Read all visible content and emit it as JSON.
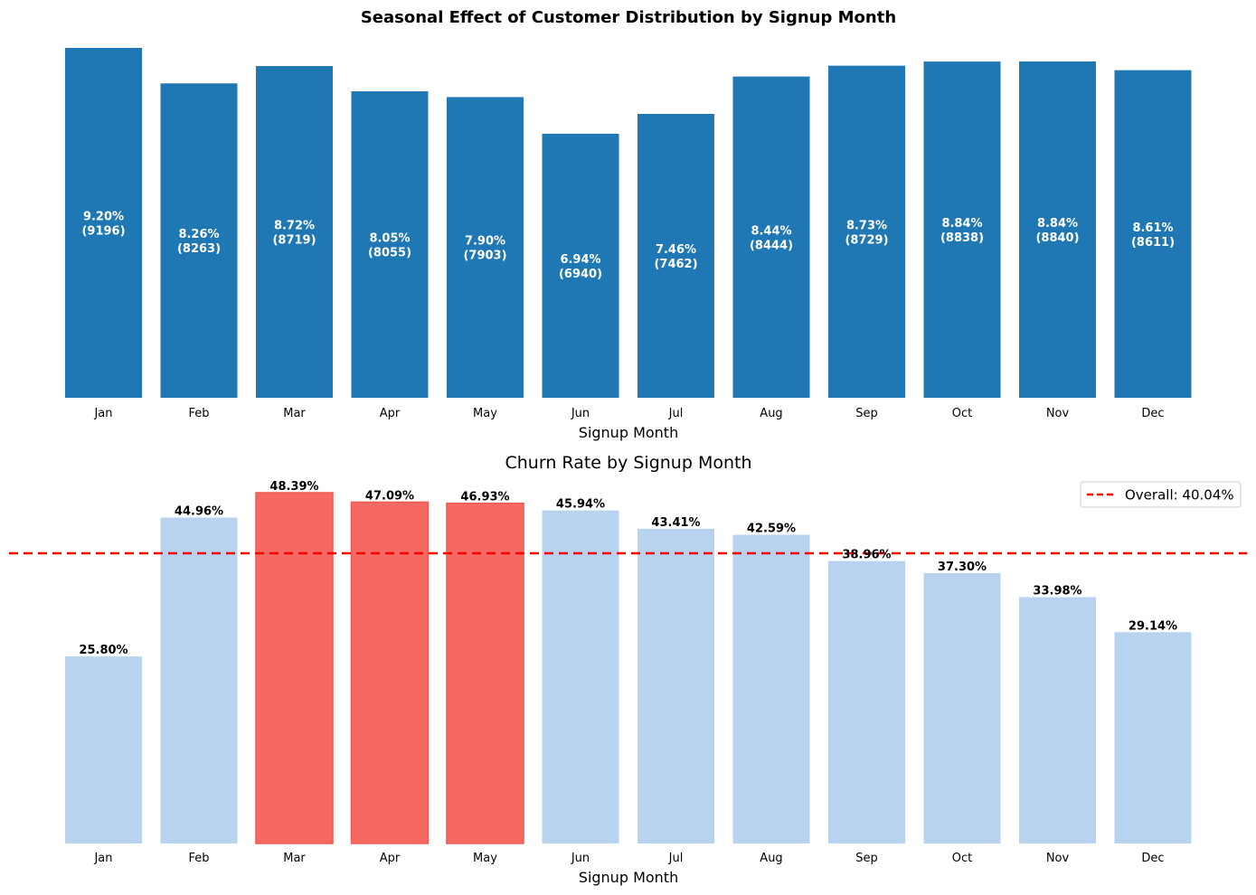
{
  "chart_data": [
    {
      "type": "bar",
      "title": "Seasonal Effect of Customer Distribution by Signup Month",
      "xlabel": "Signup Month",
      "ylabel": "",
      "categories": [
        "Jan",
        "Feb",
        "Mar",
        "Apr",
        "May",
        "Jun",
        "Jul",
        "Aug",
        "Sep",
        "Oct",
        "Nov",
        "Dec"
      ],
      "values": [
        9196,
        8263,
        8719,
        8055,
        7903,
        6940,
        7462,
        8444,
        8729,
        8838,
        8840,
        8611
      ],
      "percentages": [
        "9.20%",
        "8.26%",
        "8.72%",
        "8.05%",
        "7.90%",
        "6.94%",
        "7.46%",
        "8.44%",
        "8.73%",
        "8.84%",
        "8.84%",
        "8.61%"
      ],
      "counts": [
        "(9196)",
        "(8263)",
        "(8719)",
        "(8055)",
        "(7903)",
        "(6940)",
        "(7462)",
        "(8444)",
        "(8729)",
        "(8838)",
        "(8840)",
        "(8611)"
      ],
      "ylim": [
        0,
        9196
      ],
      "bar_color": "#1f77b4",
      "label_color": "#ffffff",
      "grid": false
    },
    {
      "type": "bar",
      "title": "Churn Rate by Signup Month",
      "xlabel": "Signup Month",
      "ylabel": "",
      "categories": [
        "Jan",
        "Feb",
        "Mar",
        "Apr",
        "May",
        "Jun",
        "Jul",
        "Aug",
        "Sep",
        "Oct",
        "Nov",
        "Dec"
      ],
      "values": [
        25.8,
        44.96,
        48.39,
        47.09,
        46.93,
        45.94,
        43.41,
        42.59,
        38.96,
        37.3,
        33.98,
        29.14
      ],
      "labels": [
        "25.80%",
        "44.96%",
        "48.39%",
        "47.09%",
        "46.93%",
        "45.94%",
        "43.41%",
        "42.59%",
        "38.96%",
        "37.30%",
        "33.98%",
        "29.14%"
      ],
      "highlighted": [
        false,
        false,
        true,
        true,
        true,
        false,
        false,
        false,
        false,
        false,
        false,
        false
      ],
      "ylim": [
        0,
        48.39
      ],
      "bar_color": "#b7d3f0",
      "highlight_color": "#f56962",
      "reference_line": {
        "value": 40.04,
        "label": "Overall: 40.04%",
        "color": "#ff0000",
        "style": "dashed"
      },
      "legend": {
        "placement": "top-right",
        "entries": [
          "Overall: 40.04%"
        ]
      },
      "grid": false
    }
  ]
}
